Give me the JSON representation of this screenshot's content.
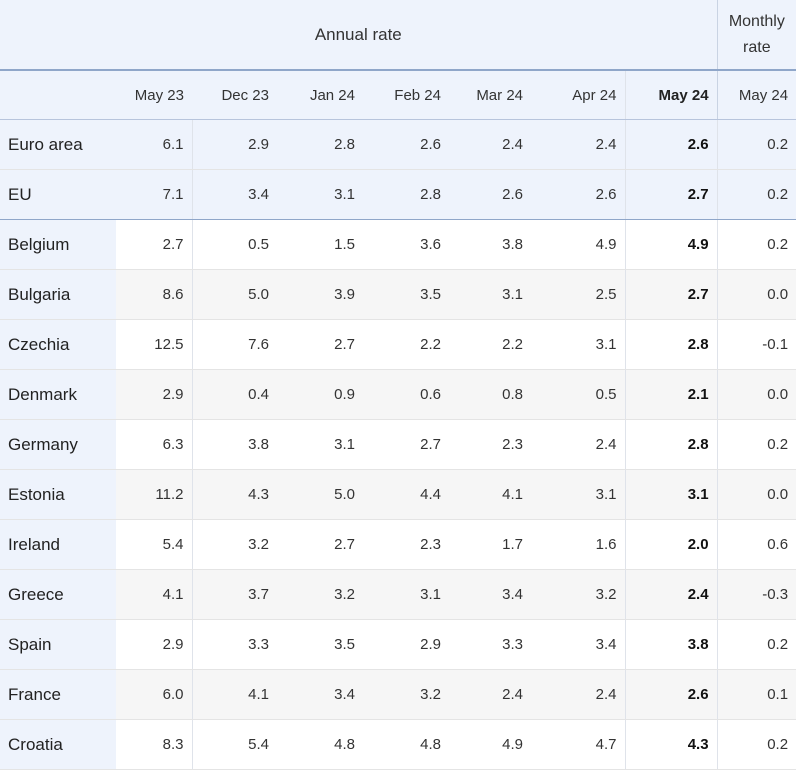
{
  "header": {
    "annual_label": "Annual rate",
    "monthly_label_line1": "Monthly",
    "monthly_label_line2": "rate",
    "columns": [
      "May 23",
      "Dec 23",
      "Jan 24",
      "Feb 24",
      "Mar 24",
      "Apr 24",
      "May 24",
      "May 24"
    ]
  },
  "rows": [
    {
      "name": "Euro area",
      "values": [
        "6.1",
        "2.9",
        "2.8",
        "2.6",
        "2.4",
        "2.4",
        "2.6",
        "0.2"
      ]
    },
    {
      "name": "EU",
      "values": [
        "7.1",
        "3.4",
        "3.1",
        "2.8",
        "2.6",
        "2.6",
        "2.7",
        "0.2"
      ]
    },
    {
      "name": "Belgium",
      "values": [
        "2.7",
        "0.5",
        "1.5",
        "3.6",
        "3.8",
        "4.9",
        "4.9",
        "0.2"
      ]
    },
    {
      "name": "Bulgaria",
      "values": [
        "8.6",
        "5.0",
        "3.9",
        "3.5",
        "3.1",
        "2.5",
        "2.7",
        "0.0"
      ]
    },
    {
      "name": "Czechia",
      "values": [
        "12.5",
        "7.6",
        "2.7",
        "2.2",
        "2.2",
        "3.1",
        "2.8",
        "-0.1"
      ]
    },
    {
      "name": "Denmark",
      "values": [
        "2.9",
        "0.4",
        "0.9",
        "0.6",
        "0.8",
        "0.5",
        "2.1",
        "0.0"
      ]
    },
    {
      "name": "Germany",
      "values": [
        "6.3",
        "3.8",
        "3.1",
        "2.7",
        "2.3",
        "2.4",
        "2.8",
        "0.2"
      ]
    },
    {
      "name": "Estonia",
      "values": [
        "11.2",
        "4.3",
        "5.0",
        "4.4",
        "4.1",
        "3.1",
        "3.1",
        "0.0"
      ]
    },
    {
      "name": "Ireland",
      "values": [
        "5.4",
        "3.2",
        "2.7",
        "2.3",
        "1.7",
        "1.6",
        "2.0",
        "0.6"
      ]
    },
    {
      "name": "Greece",
      "values": [
        "4.1",
        "3.7",
        "3.2",
        "3.1",
        "3.4",
        "3.2",
        "2.4",
        "-0.3"
      ]
    },
    {
      "name": "Spain",
      "values": [
        "2.9",
        "3.3",
        "3.5",
        "2.9",
        "3.3",
        "3.4",
        "3.8",
        "0.2"
      ]
    },
    {
      "name": "France",
      "values": [
        "6.0",
        "4.1",
        "3.4",
        "3.2",
        "2.4",
        "2.4",
        "2.6",
        "0.1"
      ]
    },
    {
      "name": "Croatia",
      "values": [
        "8.3",
        "5.4",
        "4.8",
        "4.8",
        "4.9",
        "4.7",
        "4.3",
        "0.2"
      ]
    }
  ]
}
